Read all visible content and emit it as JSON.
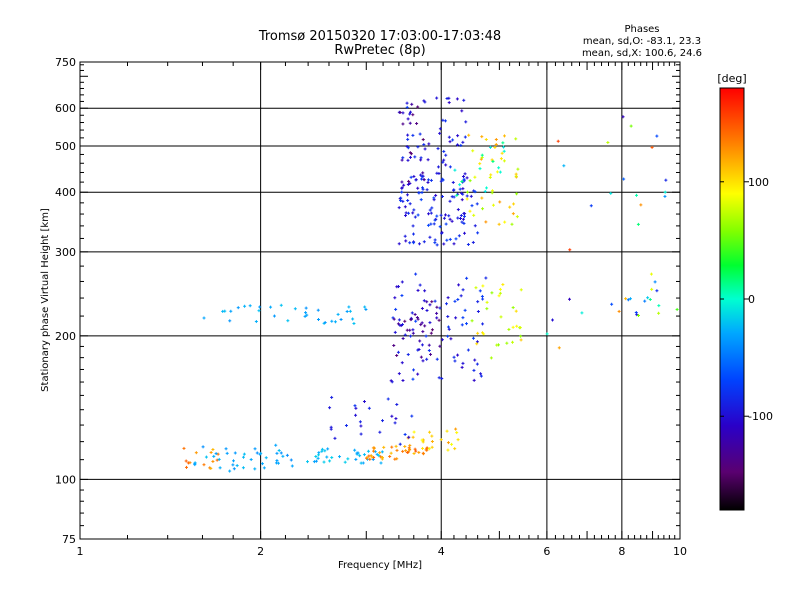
{
  "chart_data": {
    "type": "scatter",
    "title": "Tromsø 20150320 17:03:00-17:03:48",
    "subtitle": "RwPretec (8p)",
    "xlabel": "Frequency [MHz]",
    "ylabel": "Stationary phase Virtual Height [km]",
    "xscale": "log",
    "yscale": "log",
    "xlim": [
      1,
      10
    ],
    "ylim": [
      75,
      750
    ],
    "xticks": [
      "1",
      "2",
      "4",
      "6",
      "8",
      "10"
    ],
    "yticks": [
      "75",
      "100",
      "200",
      "300",
      "400",
      "500",
      "600",
      "750"
    ],
    "grid": true,
    "phase_info": {
      "heading": "Phases",
      "line1": "mean, sd,O: -83.1, 23.3",
      "line2": "mean, sd,X: 100.6, 24.6"
    },
    "colorbar": {
      "label": "[deg]",
      "range": [
        -180,
        180
      ],
      "ticks": [
        "100",
        "0",
        "-100"
      ]
    },
    "clusters": [
      {
        "f": [
          1.45,
          1.7
        ],
        "h": [
          103,
          118
        ],
        "phase": [
          110,
          150
        ],
        "n": 14
      },
      {
        "f": [
          1.55,
          2.3
        ],
        "h": [
          104,
          118
        ],
        "phase": [
          -40,
          -20
        ],
        "n": 40
      },
      {
        "f": [
          2.3,
          3.2
        ],
        "h": [
          108,
          116
        ],
        "phase": [
          -35,
          -15
        ],
        "n": 35
      },
      {
        "f": [
          3.0,
          3.8
        ],
        "h": [
          110,
          118
        ],
        "phase": [
          110,
          150
        ],
        "n": 40
      },
      {
        "f": [
          3.5,
          4.3
        ],
        "h": [
          115,
          128
        ],
        "phase": [
          85,
          125
        ],
        "n": 22
      },
      {
        "f": [
          2.6,
          3.6
        ],
        "h": [
          118,
          150
        ],
        "phase": [
          -105,
          -75
        ],
        "n": 25
      },
      {
        "f": [
          1.6,
          3.0
        ],
        "h": [
          212,
          232
        ],
        "phase": [
          -40,
          -20
        ],
        "n": 35
      },
      {
        "f": [
          3.3,
          4.8
        ],
        "h": [
          160,
          270
        ],
        "phase": [
          -110,
          -70
        ],
        "n": 90
      },
      {
        "f": [
          3.3,
          4.0
        ],
        "h": [
          180,
          240
        ],
        "phase": [
          -150,
          -120
        ],
        "n": 30
      },
      {
        "f": [
          4.5,
          5.5
        ],
        "h": [
          175,
          260
        ],
        "phase": [
          60,
          110
        ],
        "n": 30
      },
      {
        "f": [
          3.4,
          4.6
        ],
        "h": [
          310,
          440
        ],
        "phase": [
          -110,
          -70
        ],
        "n": 130
      },
      {
        "f": [
          3.4,
          4.4
        ],
        "h": [
          450,
          640
        ],
        "phase": [
          -110,
          -75
        ],
        "n": 55
      },
      {
        "f": [
          3.4,
          3.8
        ],
        "h": [
          420,
          620
        ],
        "phase": [
          -150,
          -120
        ],
        "n": 15
      },
      {
        "f": [
          4.4,
          5.4
        ],
        "h": [
          340,
          530
        ],
        "phase": [
          60,
          130
        ],
        "n": 45
      },
      {
        "f": [
          4.2,
          5.2
        ],
        "h": [
          380,
          520
        ],
        "phase": [
          -20,
          20
        ],
        "n": 15
      },
      {
        "f": [
          7.5,
          9.5
        ],
        "h": [
          220,
          260
        ],
        "phase": [
          -100,
          120
        ],
        "n": 15
      },
      {
        "f": [
          6.0,
          10.0
        ],
        "h": [
          170,
          620
        ],
        "phase": [
          -120,
          160
        ],
        "n": 25
      }
    ]
  }
}
